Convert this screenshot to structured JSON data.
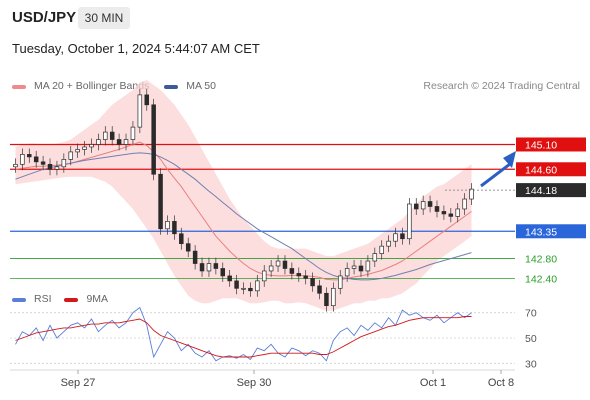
{
  "header": {
    "symbol": "USD/JPY",
    "timeframe": "30 MIN",
    "datetime": "Tuesday, October 1, 2024 5:44:07 AM CET",
    "research": "Research © 2024 Trading Central"
  },
  "legend": {
    "ma20_label": "MA 20 + Bollinger Bands",
    "ma50_label": "MA 50",
    "ma20_color": "#f08a8a",
    "ma50_color": "#3d5a99"
  },
  "rsi_legend": {
    "rsi_label": "RSI",
    "ma_label": "9MA",
    "rsi_color": "#5b7ed9",
    "ma_color": "#d11919"
  },
  "chart_data": [
    {
      "type": "candlestick",
      "title": "USD/JPY",
      "x_ticks": [
        "Sep 27",
        "Sep 30",
        "Oct 1",
        "Oct 8"
      ],
      "y_range": [
        141.4,
        146.4
      ],
      "current_price": 144.18,
      "levels": [
        {
          "value": 145.1,
          "label": "145.10",
          "color": "#e01010",
          "kind": "resistance"
        },
        {
          "value": 144.6,
          "label": "144.60",
          "color": "#e01010",
          "kind": "resistance"
        },
        {
          "value": 143.35,
          "label": "143.35",
          "color": "#2a66d9",
          "kind": "pivot"
        },
        {
          "value": 142.8,
          "label": "142.80",
          "color": "#2a9d2a",
          "kind": "support"
        },
        {
          "value": 142.4,
          "label": "142.40",
          "color": "#2a9d2a",
          "kind": "support"
        }
      ],
      "close": [
        144.7,
        144.9,
        144.85,
        144.75,
        144.7,
        144.6,
        144.65,
        144.8,
        144.95,
        145.0,
        145.05,
        145.1,
        145.2,
        145.35,
        145.2,
        145.1,
        145.2,
        145.45,
        146.1,
        145.9,
        144.5,
        143.4,
        143.55,
        143.3,
        143.1,
        142.95,
        142.7,
        142.55,
        142.7,
        142.6,
        142.45,
        142.35,
        142.2,
        142.2,
        142.15,
        142.35,
        142.55,
        142.65,
        142.75,
        142.6,
        142.5,
        142.45,
        142.4,
        142.25,
        142.1,
        141.85,
        142.2,
        142.45,
        142.6,
        142.65,
        142.55,
        142.75,
        142.9,
        143.05,
        143.15,
        143.3,
        143.2,
        143.9,
        143.8,
        143.95,
        143.85,
        143.75,
        143.7,
        143.65,
        143.8,
        144.0,
        144.2
      ],
      "ma20": [
        144.6,
        144.62,
        144.64,
        144.66,
        144.66,
        144.67,
        144.68,
        144.7,
        144.72,
        144.76,
        144.8,
        144.84,
        144.88,
        144.92,
        144.96,
        145.0,
        145.05,
        145.1,
        145.15,
        145.08,
        144.95,
        144.8,
        144.6,
        144.42,
        144.25,
        144.05,
        143.85,
        143.65,
        143.45,
        143.25,
        143.1,
        142.95,
        142.82,
        142.7,
        142.6,
        142.53,
        142.48,
        142.46,
        142.45,
        142.45,
        142.46,
        142.46,
        142.45,
        142.44,
        142.42,
        142.38,
        142.37,
        142.37,
        142.4,
        142.43,
        142.45,
        142.48,
        142.52,
        142.56,
        142.62,
        142.68,
        142.75,
        142.85,
        142.95,
        143.05,
        143.15,
        143.25,
        143.35,
        143.45,
        143.55,
        143.65,
        143.75
      ],
      "ma50": [
        144.4,
        144.45,
        144.5,
        144.55,
        144.6,
        144.63,
        144.66,
        144.69,
        144.72,
        144.75,
        144.78,
        144.8,
        144.82,
        144.84,
        144.86,
        144.88,
        144.9,
        144.92,
        144.93,
        144.92,
        144.9,
        144.85,
        144.78,
        144.7,
        144.6,
        144.5,
        144.4,
        144.28,
        144.16,
        144.05,
        143.93,
        143.82,
        143.7,
        143.6,
        143.5,
        143.4,
        143.32,
        143.24,
        143.16,
        143.08,
        143.0,
        142.9,
        142.8,
        142.7,
        142.6,
        142.52,
        142.46,
        142.42,
        142.4,
        142.38,
        142.37,
        142.37,
        142.38,
        142.4,
        142.43,
        142.46,
        142.5,
        142.54,
        142.58,
        142.63,
        142.68,
        142.72,
        142.76,
        142.8,
        142.84,
        142.88,
        142.92
      ],
      "bb_upper": [
        145.05,
        145.1,
        145.12,
        145.12,
        145.1,
        145.1,
        145.12,
        145.15,
        145.2,
        145.3,
        145.4,
        145.5,
        145.6,
        145.75,
        145.9,
        146.0,
        146.1,
        146.2,
        146.35,
        146.4,
        146.3,
        146.2,
        146.05,
        145.9,
        145.7,
        145.5,
        145.25,
        145.0,
        144.75,
        144.5,
        144.25,
        144.0,
        143.8,
        143.6,
        143.45,
        143.3,
        143.15,
        143.05,
        143.0,
        143.0,
        143.0,
        143.0,
        143.0,
        142.95,
        142.9,
        142.85,
        142.85,
        142.9,
        142.95,
        143.0,
        143.05,
        143.1,
        143.2,
        143.3,
        143.4,
        143.5,
        143.6,
        143.75,
        143.9,
        144.05,
        144.15,
        144.25,
        144.3,
        144.4,
        144.5,
        144.6,
        144.7
      ],
      "bb_lower": [
        144.3,
        144.32,
        144.34,
        144.36,
        144.38,
        144.4,
        144.42,
        144.44,
        144.45,
        144.45,
        144.45,
        144.45,
        144.4,
        144.35,
        144.25,
        144.1,
        143.95,
        143.8,
        143.6,
        143.4,
        143.2,
        142.95,
        142.7,
        142.45,
        142.25,
        142.05,
        141.95,
        141.9,
        141.9,
        141.95,
        142.0,
        142.0,
        142.0,
        141.95,
        141.9,
        141.9,
        141.92,
        141.95,
        141.95,
        141.9,
        141.9,
        141.92,
        141.9,
        141.85,
        141.8,
        141.75,
        141.75,
        141.8,
        141.85,
        141.9,
        141.9,
        141.95,
        141.95,
        142.0,
        142.0,
        142.05,
        142.1,
        142.2,
        142.3,
        142.45,
        142.6,
        142.75,
        142.85,
        142.95,
        143.05,
        143.15,
        143.25
      ]
    },
    {
      "type": "line",
      "title": "RSI",
      "y_ticks": [
        70,
        50,
        30
      ],
      "y_range": [
        20,
        80
      ],
      "rsi": [
        45,
        55,
        52,
        58,
        48,
        60,
        50,
        55,
        60,
        62,
        58,
        65,
        55,
        60,
        64,
        58,
        62,
        70,
        74,
        60,
        35,
        45,
        55,
        50,
        40,
        45,
        38,
        35,
        40,
        32,
        35,
        36,
        34,
        37,
        33,
        42,
        40,
        45,
        38,
        35,
        42,
        40,
        36,
        40,
        38,
        32,
        48,
        55,
        58,
        52,
        60,
        56,
        62,
        58,
        66,
        60,
        72,
        68,
        70,
        66,
        64,
        68,
        62,
        66,
        70,
        66,
        70
      ],
      "ma9": [
        48,
        50,
        52,
        54,
        55,
        56,
        57,
        58,
        58,
        59,
        60,
        61,
        61,
        62,
        62,
        62,
        63,
        64,
        65,
        62,
        56,
        52,
        50,
        48,
        46,
        44,
        42,
        40,
        38,
        36,
        35,
        35,
        35,
        35,
        35,
        36,
        37,
        38,
        38,
        38,
        38,
        38,
        38,
        38,
        37,
        37,
        39,
        42,
        45,
        48,
        51,
        53,
        55,
        57,
        59,
        60,
        62,
        64,
        65,
        66,
        66,
        66,
        66,
        66,
        66,
        67,
        67
      ]
    }
  ]
}
